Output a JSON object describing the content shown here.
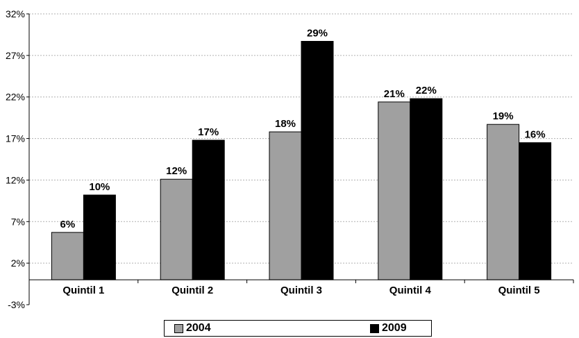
{
  "chart_data": {
    "type": "bar",
    "categories": [
      "Quintil 1",
      "Quintil 2",
      "Quintil 3",
      "Quintil 4",
      "Quintil 5"
    ],
    "series": [
      {
        "name": "2004",
        "values": [
          5.7,
          12.1,
          17.8,
          21.4,
          18.7
        ],
        "labels": [
          "6%",
          "12%",
          "18%",
          "21%",
          "19%"
        ],
        "color": "#a0a0a0"
      },
      {
        "name": "2009",
        "values": [
          10.2,
          16.8,
          28.7,
          21.8,
          16.5
        ],
        "labels": [
          "10%",
          "17%",
          "29%",
          "22%",
          "16%"
        ],
        "color": "#000000"
      }
    ],
    "y_ticks": [
      -3,
      2,
      7,
      12,
      17,
      22,
      27,
      32
    ],
    "y_tick_labels": [
      "-3%",
      "2%",
      "7%",
      "12%",
      "17%",
      "22%",
      "27%",
      "32%"
    ],
    "ylim": [
      -3,
      32
    ],
    "grid": true,
    "legend_position": "bottom"
  }
}
